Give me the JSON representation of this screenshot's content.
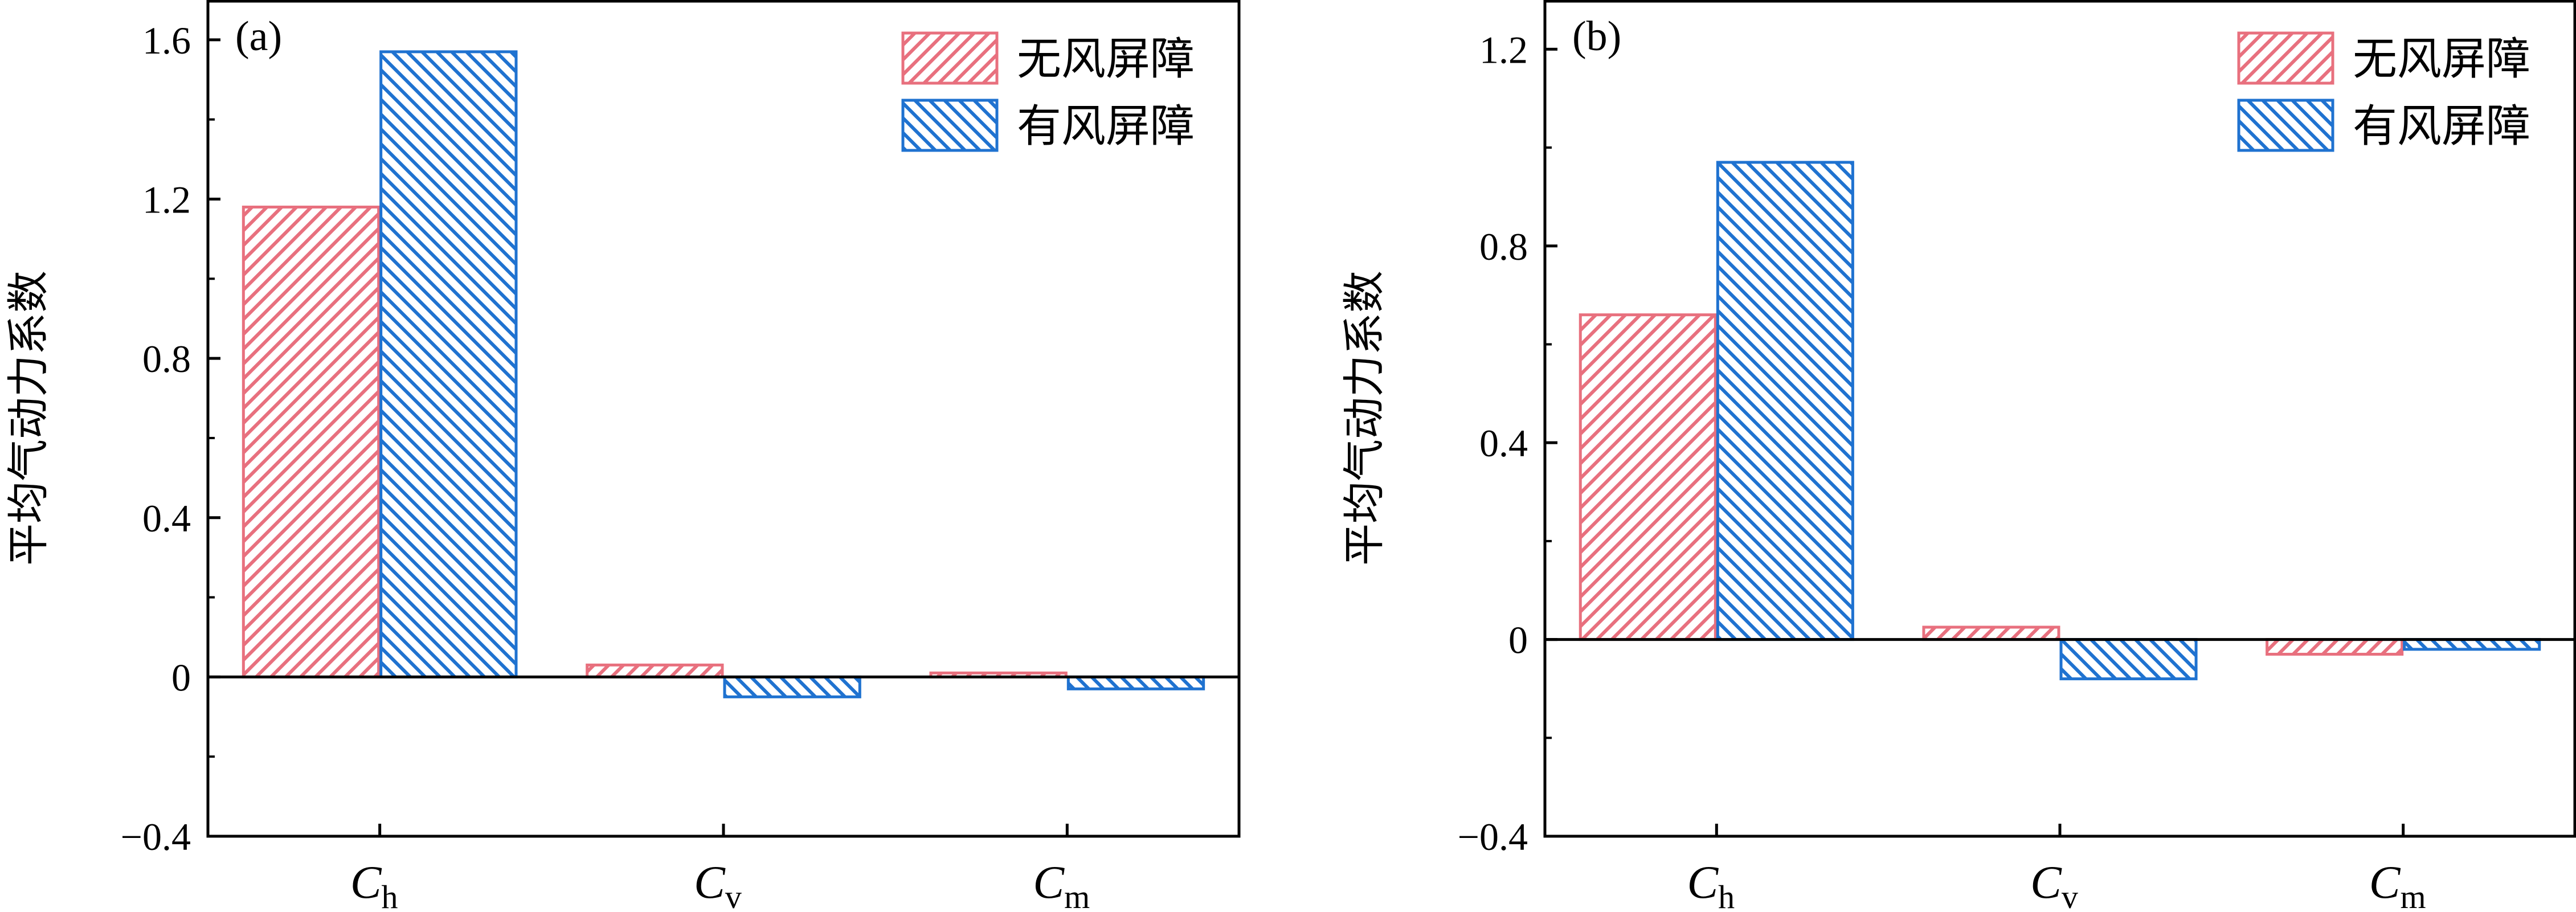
{
  "chart_data": [
    {
      "type": "bar",
      "panel_label": "(a)",
      "categories": [
        {
          "symbol": "C",
          "subscript": "h"
        },
        {
          "symbol": "C",
          "subscript": "v"
        },
        {
          "symbol": "C",
          "subscript": "m"
        }
      ],
      "series": [
        {
          "name": "无风屏障",
          "color": "#e8707e",
          "hatch": "forward",
          "values": [
            1.18,
            0.03,
            0.01
          ]
        },
        {
          "name": "有风屏障",
          "color": "#1f72d0",
          "hatch": "back",
          "values": [
            1.57,
            -0.05,
            -0.03
          ]
        }
      ],
      "ylabel": "平均气动力系数",
      "ylim": [
        -0.4,
        1.7
      ],
      "yticks": [
        -0.4,
        0,
        0.4,
        0.8,
        1.2,
        1.6
      ],
      "ytick_labels": [
        "−0.4",
        "0",
        "0.4",
        "0.8",
        "1.2",
        "1.6"
      ],
      "legend": "top-right",
      "grid": false
    },
    {
      "type": "bar",
      "panel_label": "(b)",
      "categories": [
        {
          "symbol": "C",
          "subscript": "h"
        },
        {
          "symbol": "C",
          "subscript": "v"
        },
        {
          "symbol": "C",
          "subscript": "m"
        }
      ],
      "series": [
        {
          "name": "无风屏障",
          "color": "#e8707e",
          "hatch": "forward",
          "values": [
            0.66,
            0.025,
            -0.03
          ]
        },
        {
          "name": "有风屏障",
          "color": "#1f72d0",
          "hatch": "back",
          "values": [
            0.97,
            -0.08,
            -0.02
          ]
        }
      ],
      "ylabel": "平均气动力系数",
      "ylim": [
        -0.4,
        1.3
      ],
      "yticks": [
        -0.4,
        0,
        0.4,
        0.8,
        1.2
      ],
      "ytick_labels": [
        "−0.4",
        "0",
        "0.4",
        "0.8",
        "1.2"
      ],
      "legend": "top-right",
      "grid": false
    }
  ]
}
